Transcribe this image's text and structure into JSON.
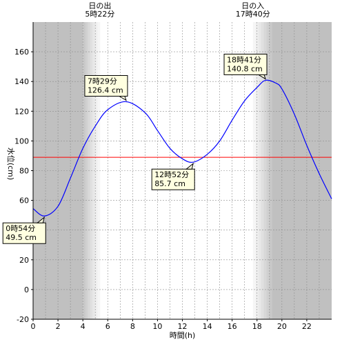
{
  "chart_data": {
    "type": "line",
    "xlabel": "時間(h)",
    "ylabel": "水位(cm)",
    "xlim": [
      0,
      24
    ],
    "ylim": [
      -20,
      180
    ],
    "x_ticks": [
      0,
      2,
      4,
      6,
      8,
      10,
      12,
      14,
      16,
      18,
      20,
      22
    ],
    "y_ticks": [
      -20,
      0,
      20,
      40,
      60,
      80,
      100,
      120,
      140,
      160
    ],
    "grid": true,
    "reference_line": {
      "y": 89,
      "color": "#ff0000"
    },
    "series": [
      {
        "color": "#0000ff",
        "x": [
          0,
          0.9,
          2,
          3,
          4,
          5,
          6,
          7.48,
          9,
          10,
          11,
          12,
          12.87,
          14,
          15,
          16,
          17,
          18,
          18.68,
          19.5,
          20,
          21,
          22,
          23,
          24
        ],
        "y": [
          54.5,
          49.5,
          56,
          75,
          95,
          110,
          121,
          126.4,
          119,
          107,
          95,
          88,
          85.7,
          91,
          100,
          114,
          127,
          136,
          140.8,
          139,
          135,
          118,
          97,
          78,
          61
        ]
      }
    ],
    "night_shading": {
      "before_sunrise_end_hour": 4.0,
      "after_sunset_start_hour": 19.2,
      "twilight_morning": [
        4.0,
        5.37
      ],
      "twilight_evening": [
        17.67,
        19.2
      ]
    },
    "sun_events": [
      {
        "label": "日の出",
        "time": "5時22分",
        "hour": 5.37
      },
      {
        "label": "日の入",
        "time": "17時40分",
        "hour": 17.67
      }
    ],
    "callouts": [
      {
        "time": "0時54分",
        "value": "49.5 cm",
        "x": 0.9,
        "y": 49.5,
        "placement": "below-left"
      },
      {
        "time": "7時29分",
        "value": "126.4 cm",
        "x": 7.48,
        "y": 126.4,
        "placement": "above-left"
      },
      {
        "time": "12時52分",
        "value": "85.7 cm",
        "x": 12.87,
        "y": 85.7,
        "placement": "below-left"
      },
      {
        "time": "18時41分",
        "value": "140.8 cm",
        "x": 18.68,
        "y": 140.8,
        "placement": "above-left"
      }
    ]
  }
}
